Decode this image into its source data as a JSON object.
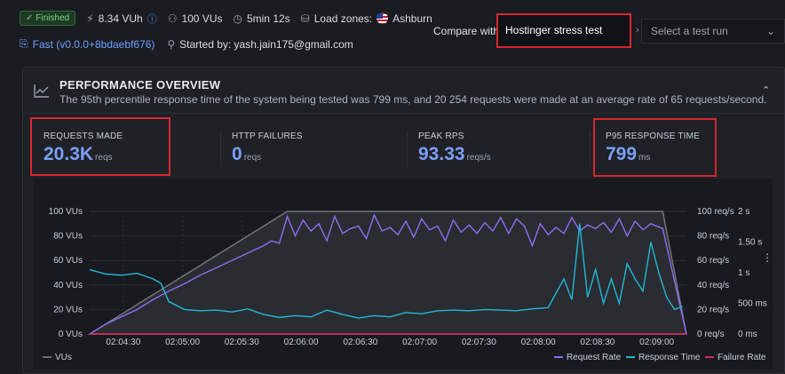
{
  "status": {
    "badge": "Finished",
    "vuh": "8.34 VUh",
    "vus": "100 VUs",
    "duration": "5min 12s",
    "load_zones_label": "Load zones:",
    "load_zone": "Ashburn",
    "version": "Fast (v0.0.0+8bdaebf676)",
    "started_by": "Started by: yash.jain175@gmail.com"
  },
  "compare": {
    "label": "Compare with",
    "test_name": "Hostinger stress test",
    "run_placeholder": "Select a test run"
  },
  "overview": {
    "title": "PERFORMANCE OVERVIEW",
    "subtitle": "The 95th percentile response time of the system being tested was 799 ms, and 20 254 requests were made at an average rate of 65 requests/second."
  },
  "stats": [
    {
      "label": "REQUESTS MADE",
      "value": "20.3K",
      "unit": "reqs"
    },
    {
      "label": "HTTP FAILURES",
      "value": "0",
      "unit": "reqs"
    },
    {
      "label": "PEAK RPS",
      "value": "93.33",
      "unit": "reqs/s"
    },
    {
      "label": "P95 RESPONSE TIME",
      "value": "799",
      "unit": "ms"
    }
  ],
  "colors": {
    "vus": "#6b6e75",
    "request_rate": "#8e6cf0",
    "response_time": "#1fb8d8",
    "failure_rate": "#e0245e",
    "highlight": "#d7262e",
    "stat_value": "#7a9ff7"
  },
  "chart_data": {
    "type": "line",
    "x": [
      "02:04:30",
      "02:05:00",
      "02:05:30",
      "02:06:00",
      "02:06:30",
      "02:07:00",
      "02:07:30",
      "02:08:00",
      "02:08:30",
      "02:09:00"
    ],
    "ticks": {
      "vus": [
        "0 VUs",
        "20 VUs",
        "40 VUs",
        "60 VUs",
        "80 VUs",
        "100 VUs"
      ],
      "rps": [
        "0 req/s",
        "20 req/s",
        "40 req/s",
        "60 req/s",
        "80 req/s",
        "100 req/s"
      ],
      "ms": [
        "0 ms",
        "500 ms",
        "1 s",
        "1.50 s",
        "2 s"
      ]
    },
    "ylim_vus": [
      0,
      100
    ],
    "ylim_rps": [
      0,
      100
    ],
    "ylim_ms": [
      0,
      2000
    ],
    "legend": {
      "vus": "VUs",
      "request_rate": "Request Rate",
      "response_time": "Response Time",
      "failure_rate": "Failure Rate"
    },
    "series": [
      {
        "name": "VUs",
        "axis": "vus",
        "points": [
          [
            0,
            0
          ],
          [
            100,
            100
          ],
          [
            290,
            100
          ],
          [
            302,
            0
          ]
        ]
      },
      {
        "name": "Request Rate",
        "axis": "rps",
        "points": [
          [
            0,
            0
          ],
          [
            8,
            8
          ],
          [
            16,
            14
          ],
          [
            24,
            20
          ],
          [
            32,
            28
          ],
          [
            40,
            35
          ],
          [
            48,
            41
          ],
          [
            56,
            48
          ],
          [
            64,
            54
          ],
          [
            72,
            60
          ],
          [
            80,
            66
          ],
          [
            88,
            72
          ],
          [
            92,
            76
          ],
          [
            96,
            74
          ],
          [
            100,
            96
          ],
          [
            104,
            80
          ],
          [
            108,
            93
          ],
          [
            112,
            84
          ],
          [
            116,
            90
          ],
          [
            120,
            76
          ],
          [
            124,
            96
          ],
          [
            128,
            82
          ],
          [
            132,
            86
          ],
          [
            136,
            88
          ],
          [
            140,
            78
          ],
          [
            144,
            97
          ],
          [
            148,
            84
          ],
          [
            152,
            87
          ],
          [
            156,
            81
          ],
          [
            160,
            92
          ],
          [
            164,
            79
          ],
          [
            168,
            94
          ],
          [
            172,
            85
          ],
          [
            176,
            88
          ],
          [
            180,
            76
          ],
          [
            184,
            93
          ],
          [
            188,
            83
          ],
          [
            192,
            89
          ],
          [
            196,
            82
          ],
          [
            200,
            91
          ],
          [
            204,
            84
          ],
          [
            208,
            95
          ],
          [
            212,
            82
          ],
          [
            216,
            94
          ],
          [
            220,
            88
          ],
          [
            224,
            72
          ],
          [
            228,
            90
          ],
          [
            232,
            81
          ],
          [
            236,
            87
          ],
          [
            240,
            82
          ],
          [
            244,
            95
          ],
          [
            248,
            84
          ],
          [
            252,
            89
          ],
          [
            256,
            86
          ],
          [
            260,
            91
          ],
          [
            264,
            83
          ],
          [
            268,
            94
          ],
          [
            272,
            80
          ],
          [
            276,
            92
          ],
          [
            280,
            85
          ],
          [
            284,
            90
          ],
          [
            290,
            86
          ],
          [
            302,
            0
          ]
        ]
      },
      {
        "name": "Response Time",
        "axis": "ms",
        "points": [
          [
            0,
            1050
          ],
          [
            8,
            980
          ],
          [
            16,
            960
          ],
          [
            24,
            990
          ],
          [
            32,
            900
          ],
          [
            36,
            830
          ],
          [
            40,
            530
          ],
          [
            48,
            400
          ],
          [
            56,
            380
          ],
          [
            64,
            390
          ],
          [
            72,
            360
          ],
          [
            80,
            410
          ],
          [
            88,
            320
          ],
          [
            96,
            270
          ],
          [
            104,
            300
          ],
          [
            112,
            280
          ],
          [
            120,
            390
          ],
          [
            128,
            320
          ],
          [
            136,
            260
          ],
          [
            144,
            300
          ],
          [
            152,
            280
          ],
          [
            160,
            350
          ],
          [
            168,
            330
          ],
          [
            176,
            380
          ],
          [
            184,
            390
          ],
          [
            192,
            380
          ],
          [
            200,
            400
          ],
          [
            208,
            390
          ],
          [
            216,
            380
          ],
          [
            224,
            410
          ],
          [
            232,
            430
          ],
          [
            240,
            900
          ],
          [
            244,
            560
          ],
          [
            248,
            1800
          ],
          [
            252,
            600
          ],
          [
            256,
            1050
          ],
          [
            260,
            500
          ],
          [
            264,
            900
          ],
          [
            268,
            500
          ],
          [
            272,
            1150
          ],
          [
            276,
            900
          ],
          [
            280,
            700
          ],
          [
            284,
            1500
          ],
          [
            288,
            1000
          ],
          [
            292,
            600
          ],
          [
            296,
            400
          ],
          [
            300,
            450
          ]
        ]
      },
      {
        "name": "Failure Rate",
        "axis": "rps",
        "points": [
          [
            0,
            0
          ],
          [
            302,
            0
          ]
        ]
      }
    ]
  }
}
